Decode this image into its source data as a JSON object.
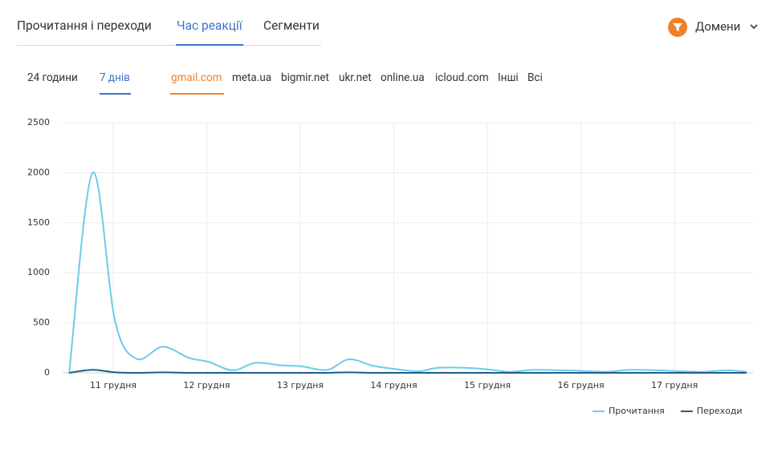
{
  "tabs": [
    "Прочитання і переходи",
    "Час реакції",
    "Сегменти"
  ],
  "domains_menu": "Домени",
  "periods": [
    "24 години",
    "7 днів"
  ],
  "domains": [
    "gmail.com",
    "meta.ua",
    "bigmir.net",
    "ukr.net",
    "online.ua",
    "icloud.com",
    "Інші",
    "Всі"
  ],
  "chart_data": {
    "type": "line",
    "x": [
      10.53,
      10.78,
      11.02,
      11.25,
      11.53,
      11.81,
      12.02,
      12.28,
      12.52,
      12.79,
      13.01,
      13.29,
      13.52,
      13.78,
      14.0,
      14.26,
      14.47,
      14.77,
      15.0,
      15.24,
      15.5,
      15.8,
      16.0,
      16.27,
      16.53,
      16.83,
      17.09,
      17.3,
      17.56,
      17.77
    ],
    "series": [
      {
        "name": "Прочитання",
        "color": "#6ccbec",
        "values": [
          0,
          2000,
          520,
          140,
          260,
          150,
          110,
          25,
          100,
          75,
          65,
          30,
          135,
          70,
          40,
          15,
          50,
          50,
          35,
          10,
          30,
          25,
          20,
          10,
          30,
          25,
          15,
          10,
          25,
          10
        ]
      },
      {
        "name": "Переходи",
        "color": "#1d5e8c",
        "values": [
          0,
          30,
          5,
          0,
          5,
          0,
          0,
          0,
          0,
          0,
          0,
          0,
          5,
          0,
          0,
          0,
          0,
          0,
          0,
          0,
          0,
          0,
          0,
          0,
          0,
          0,
          0,
          0,
          0,
          0
        ]
      }
    ],
    "xlim": [
      10.46,
      17.84
    ],
    "ylim": [
      0,
      2500
    ],
    "xticks": [
      {
        "value": 11,
        "label": "11 грудня"
      },
      {
        "value": 12,
        "label": "12 грудня"
      },
      {
        "value": 13,
        "label": "13 грудня"
      },
      {
        "value": 14,
        "label": "14 грудня"
      },
      {
        "value": 15,
        "label": "15 грудня"
      },
      {
        "value": 16,
        "label": "16 грудня"
      },
      {
        "value": 17,
        "label": "17 грудня"
      }
    ],
    "yticks": [
      0,
      500,
      1000,
      1500,
      2000,
      2500
    ],
    "grid": true
  }
}
